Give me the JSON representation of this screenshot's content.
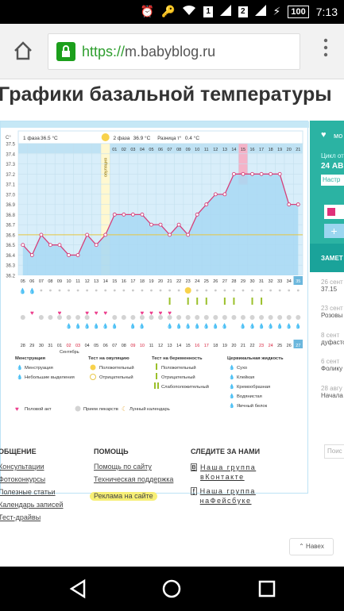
{
  "status_bar": {
    "time": "7:13",
    "battery": "100",
    "sim1": "1",
    "sim2": "2"
  },
  "browser": {
    "url_scheme": "https://",
    "url_host": "m.babyblog.ru"
  },
  "page": {
    "title": "Графики базальной температуры"
  },
  "chart_data": {
    "type": "line",
    "ylabel": "C°",
    "ylim": [
      36.2,
      37.5
    ],
    "yticks": [
      "37.5",
      "37.4",
      "37.3",
      "37.2",
      "37.1",
      "37.0",
      "36.9",
      "36.8",
      "36.7",
      "36.6",
      "36.5",
      "36.4",
      "36.3",
      "36.2"
    ],
    "phase1_label": "1 фаза",
    "phase1_temp": "36.5 °C",
    "phase2_label": "2 фаза",
    "phase2_temp": "36.9 °C",
    "diff_label": "Разница т°",
    "diff_value": "0.4 °C",
    "ovulation_label": "овуляция",
    "cycle_days": [
      "01",
      "02",
      "03",
      "04",
      "05",
      "06",
      "07",
      "08",
      "09",
      "10",
      "11",
      "12",
      "13",
      "14",
      "15",
      "16",
      "17",
      "18",
      "19",
      "20",
      "21"
    ],
    "dates_top": [
      "05",
      "06",
      "07",
      "08",
      "09",
      "10",
      "11",
      "12",
      "13",
      "14",
      "15",
      "16",
      "17",
      "18",
      "19",
      "20",
      "21",
      "22",
      "23",
      "24",
      "25",
      "26",
      "27",
      "28",
      "29",
      "30",
      "31",
      "32",
      "33",
      "34",
      "35"
    ],
    "dates_bottom": [
      "28",
      "29",
      "30",
      "31",
      "01",
      "02",
      "03",
      "04",
      "05",
      "06",
      "07",
      "08",
      "09",
      "10",
      "11",
      "12",
      "13",
      "14",
      "15",
      "16",
      "17",
      "18",
      "19",
      "20",
      "21",
      "22",
      "23",
      "24",
      "25",
      "26",
      "27"
    ],
    "dates_bottom_red": [
      5,
      6,
      12,
      13,
      19,
      20,
      26,
      27
    ],
    "month_label": "Сентябрь",
    "values": [
      36.5,
      36.4,
      36.6,
      36.5,
      36.5,
      36.4,
      36.4,
      36.6,
      36.5,
      36.6,
      36.8,
      36.8,
      36.8,
      36.8,
      36.7,
      36.7,
      36.6,
      36.7,
      36.6,
      36.8,
      36.9,
      37.0,
      37.0,
      37.2,
      37.2,
      37.2,
      37.2,
      37.2,
      37.2,
      36.9,
      36.9
    ],
    "coverline": 36.6
  },
  "legend": {
    "menstruation_title": "Менструация",
    "menstruation": "Менструация",
    "light_bleeding": "Небольшие выделения",
    "ovulation_test_title": "Тест на овуляцию",
    "positive": "Положительный",
    "negative": "Отрицательный",
    "pregnancy_test_title": "Тест на беременность",
    "preg_positive": "Положительный",
    "preg_negative": "Отрицательный",
    "preg_weak": "Слабоположительный",
    "cervical_title": "Цервикальная жидкость",
    "dry": "Сухо",
    "sticky": "Клейкая",
    "creamy": "Кремообразная",
    "watery": "Водянистая",
    "eggwhite": "Яичный белок",
    "intercourse": "Половой акт",
    "medication": "Прием лекарств",
    "lunar": "Лунный календарь"
  },
  "side": {
    "mo": "мо",
    "cycle": "Цикл от",
    "date": "24 АВ",
    "settings": "Настр",
    "notes_header": "ЗАМЕТ",
    "notes": [
      {
        "date": "26 сент",
        "text": "37.15"
      },
      {
        "date": "23 сент",
        "text": "Розовы"
      },
      {
        "date": "8 сент",
        "text": "дуфасто"
      },
      {
        "date": "6 сент",
        "text": "Фолику"
      },
      {
        "date": "28 авгу",
        "text": "Начала"
      }
    ]
  },
  "footer": {
    "col1_title": "ОБЩЕНИЕ",
    "col1": [
      "Консультации",
      "Фотоконкурсы",
      "Полезные статьи",
      "Календарь записей",
      "Тест-драйвы"
    ],
    "col2_title": "ПОМОЩЬ",
    "col2": [
      "Помощь по сайту",
      "Техническая поддержка",
      "Реклама на сайте"
    ],
    "col3_title": "СЛЕДИТЕ ЗА НАМИ",
    "vk": "Наша группа вКонтакте",
    "fb": "Наша группа наФейсбуке",
    "search_stub": "Поис",
    "back": "Навеx"
  }
}
